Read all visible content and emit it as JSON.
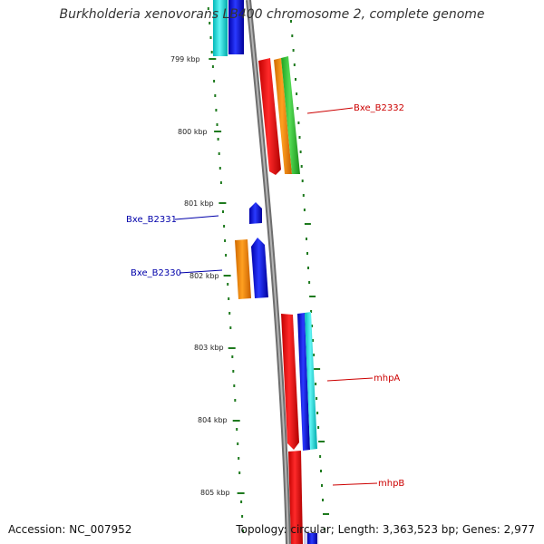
{
  "header": {
    "title": "Burkholderia xenovorans LB400 chromosome 2, complete genome"
  },
  "footer": {
    "accession": "Accession: NC_007952",
    "topology": "Topology: circular; Length: 3,363,523 bp; Genes: 2,977"
  },
  "map": {
    "ruler_unit": "kbp",
    "ruler_ticks": [
      "799 kbp",
      "800 kbp",
      "801 kbp",
      "802 kbp",
      "803 kbp",
      "804 kbp",
      "805 kbp"
    ],
    "gene_labels": [
      {
        "id": "bxe-b2332",
        "text": "Bxe_B2332",
        "color": "#cc0000"
      },
      {
        "id": "bxe-b2331",
        "text": "Bxe_B2331",
        "color": "#0000aa"
      },
      {
        "id": "bxe-b2330",
        "text": "Bxe_B2330",
        "color": "#0000aa"
      },
      {
        "id": "mhpa",
        "text": "mhpA",
        "color": "#cc0000"
      },
      {
        "id": "mhpb",
        "text": "mhpB",
        "color": "#cc0000"
      }
    ],
    "colors": {
      "backbone": "#8a8a8a",
      "ticks": "#1e7a1e",
      "red": "#ff0000",
      "orange": "#ff8c00",
      "green": "#2fc72f",
      "blue": "#0000ee",
      "cyan": "#00dede"
    }
  }
}
